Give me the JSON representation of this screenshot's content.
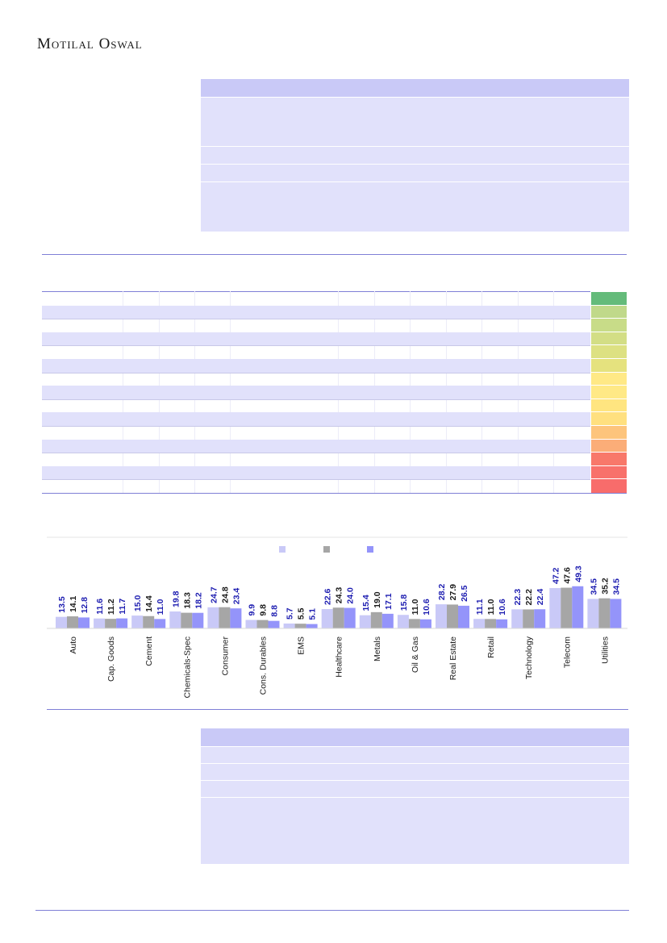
{
  "brand": {
    "name": "Motilal Oswal"
  },
  "heat_colors": [
    "#64bb7a",
    "#c0d98a",
    "#c8dc88",
    "#d3de85",
    "#dde182",
    "#e5e27e",
    "#ffe986",
    "#ffe986",
    "#ffe580",
    "#ffe07f",
    "#fdc47c",
    "#fbad78",
    "#f8786a",
    "#f8716b",
    "#f86c6b"
  ],
  "chart_data": {
    "type": "bar",
    "categories": [
      "Auto",
      "Cap. Goods",
      "Cement",
      "Chemicals-Spec",
      "Consumer",
      "Cons. Durables",
      "EMS",
      "Healthcare",
      "Metals",
      "Oil & Gas",
      "Real Estate",
      "Retail",
      "Technology",
      "Telecom",
      "Utilities"
    ],
    "series": [
      {
        "color": "#c9c9f7",
        "label_color": "#1c1cb0",
        "values": [
          13.5,
          11.6,
          15.0,
          19.8,
          24.7,
          9.9,
          5.7,
          22.6,
          15.4,
          15.8,
          28.2,
          11.1,
          22.3,
          47.2,
          34.5
        ]
      },
      {
        "color": "#a6a6a6",
        "label_color": "#1a1a1a",
        "values": [
          14.1,
          11.2,
          14.4,
          18.3,
          24.8,
          9.8,
          5.5,
          24.3,
          19.0,
          11.0,
          27.9,
          11.0,
          22.2,
          47.6,
          35.2
        ]
      },
      {
        "color": "#9494fa",
        "label_color": "#1c1cb0",
        "values": [
          12.8,
          11.7,
          11.0,
          18.2,
          23.4,
          8.8,
          5.1,
          24.0,
          17.1,
          10.6,
          26.5,
          10.6,
          22.4,
          49.3,
          34.5
        ]
      }
    ],
    "legend_placement": "top-center",
    "grid": false
  }
}
